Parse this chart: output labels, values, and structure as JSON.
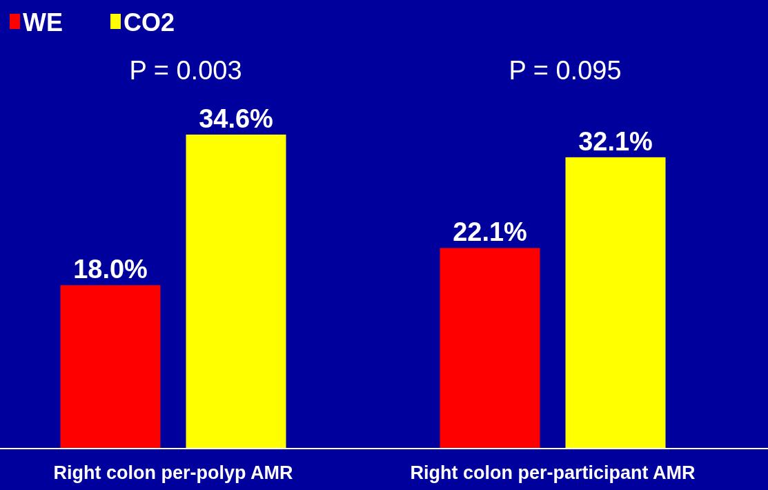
{
  "chart_data": {
    "type": "bar",
    "categories": [
      "Right colon per-polyp AMR",
      "Right colon per-participant AMR"
    ],
    "series": [
      {
        "name": "WE",
        "color": "#ff0000",
        "values": [
          18.0,
          22.1
        ],
        "value_labels": [
          "18.0%",
          "22.1%"
        ]
      },
      {
        "name": "CO2",
        "color": "#ffff00",
        "values": [
          34.6,
          32.1
        ],
        "value_labels": [
          "34.6%",
          "32.1%"
        ]
      }
    ],
    "annotations": [
      "P = 0.003",
      "P = 0.095"
    ],
    "legend": "top left"
  }
}
